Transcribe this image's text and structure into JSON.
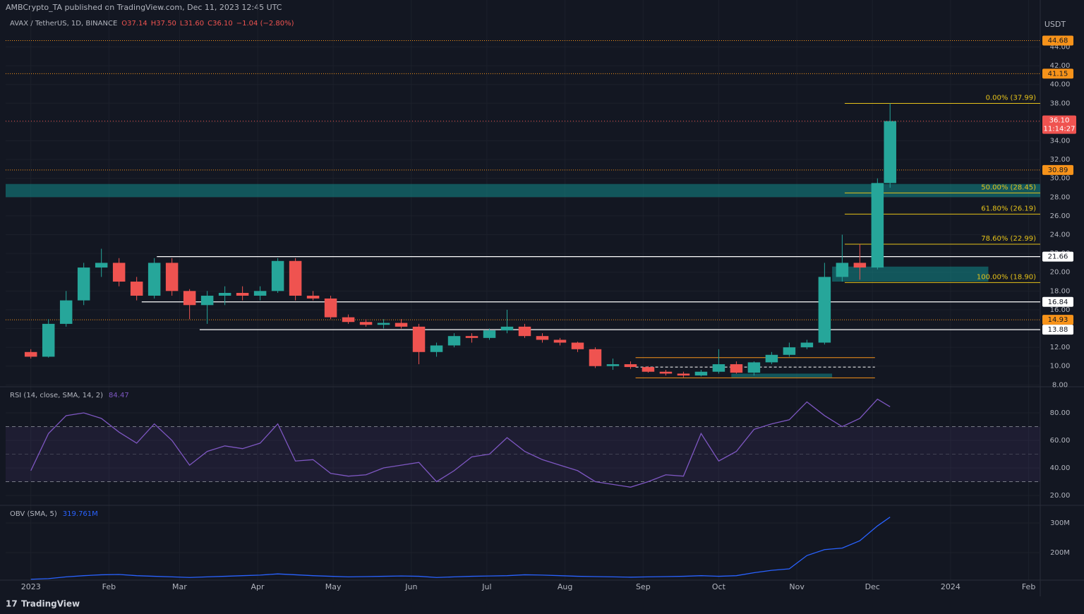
{
  "header": {
    "publisher": "AMBCrypto_TA published on TradingView.com, Dec 11, 2023 12:45 UTC",
    "symbol": "AVAX / TetherUS, 1D, BINANCE",
    "ohlc": [
      "O37.14",
      "H37.50",
      "L31.60",
      "C36.10",
      "−1.04 (−2.80%)"
    ],
    "currency": "USDT",
    "countdown": "11:14:27",
    "brand": "TradingView"
  },
  "chart_data": [
    {
      "type": "candlestick",
      "x": [
        0,
        7,
        14,
        21,
        28,
        35,
        42,
        49,
        56,
        63,
        70,
        77,
        84,
        91,
        98,
        105,
        112,
        119,
        126,
        133,
        140,
        147,
        154,
        161,
        168,
        175,
        182,
        189,
        196,
        203,
        210,
        217,
        224,
        231,
        238,
        245,
        252,
        259,
        266,
        273,
        280,
        287,
        294,
        301,
        308,
        315,
        322,
        329,
        336,
        341
      ],
      "open": [
        11.5,
        11,
        14.5,
        17,
        20.5,
        21,
        19,
        17.5,
        21,
        18,
        16.5,
        17.5,
        17.8,
        17.5,
        18,
        21.2,
        17.5,
        17.2,
        15.2,
        14.7,
        14.4,
        14.6,
        14.2,
        11.5,
        12.2,
        13.2,
        13,
        13.8,
        14.2,
        13.2,
        12.8,
        12.5,
        11.8,
        10,
        10.2,
        9.9,
        9.4,
        9.2,
        9,
        9.4,
        10.2,
        9.3,
        10.4,
        11.2,
        12,
        12.5,
        19.5,
        21,
        20.5,
        29.5
      ],
      "high": [
        11.8,
        15,
        18,
        21,
        22.5,
        21.5,
        19.5,
        21.5,
        21.5,
        18.2,
        18,
        18.5,
        18.5,
        18.5,
        21.5,
        21.5,
        18,
        17.5,
        15.5,
        15,
        15,
        15,
        14.5,
        12.5,
        13.5,
        13.5,
        14,
        16,
        14.5,
        13.5,
        13,
        12.6,
        12,
        10.8,
        10.5,
        10,
        9.6,
        9.4,
        9.6,
        11.8,
        10.5,
        10.5,
        11.5,
        12.5,
        12.8,
        21,
        24,
        23,
        30,
        37.99
      ],
      "low": [
        10.8,
        10.9,
        14.2,
        16.5,
        19.5,
        18.5,
        17,
        17.2,
        17.5,
        15,
        14.5,
        16.5,
        17,
        17,
        17.8,
        17,
        17,
        15,
        14.5,
        14.2,
        14,
        14,
        10.2,
        11,
        12,
        12.5,
        12.8,
        13.5,
        13,
        12.5,
        12.2,
        11.5,
        9.8,
        9.6,
        9.7,
        9.3,
        9,
        8.8,
        8.9,
        9.2,
        9.2,
        9,
        10.2,
        11,
        11.8,
        12.3,
        19,
        19.2,
        20.3,
        29
      ],
      "close": [
        11,
        14.5,
        17,
        20.5,
        21,
        19,
        17.5,
        21,
        18,
        16.5,
        17.5,
        17.8,
        17.5,
        18,
        21.2,
        17.5,
        17.2,
        15.2,
        14.7,
        14.4,
        14.6,
        14.2,
        11.5,
        12.2,
        13.2,
        13,
        13.8,
        14.2,
        13.2,
        12.8,
        12.5,
        11.8,
        10,
        10.2,
        9.9,
        9.4,
        9.2,
        9,
        9.4,
        10.2,
        9.3,
        10.4,
        11.2,
        12,
        12.5,
        19.5,
        21,
        20.5,
        29.5,
        36.1
      ],
      "up_color": "#26a69a",
      "down_color": "#ef5350",
      "xlim": [
        -10,
        400.6
      ],
      "xticks": [
        {
          "value": 0,
          "label": "2023"
        },
        {
          "value": 31,
          "label": "Feb"
        },
        {
          "value": 59,
          "label": "Mar"
        },
        {
          "value": 90,
          "label": "Apr"
        },
        {
          "value": 120,
          "label": "May"
        },
        {
          "value": 151,
          "label": "Jun"
        },
        {
          "value": 181,
          "label": "Jul"
        },
        {
          "value": 212,
          "label": "Aug"
        },
        {
          "value": 243,
          "label": "Sep"
        },
        {
          "value": 273,
          "label": "Oct"
        },
        {
          "value": 304,
          "label": "Nov"
        },
        {
          "value": 334,
          "label": "Dec"
        },
        {
          "value": 365,
          "label": "2024"
        },
        {
          "value": 396,
          "label": "Feb"
        }
      ],
      "ylim": [
        7.8,
        49
      ],
      "yticks": [
        {
          "value": 8,
          "label": "8.00"
        },
        {
          "value": 10,
          "label": "10.00"
        },
        {
          "value": 12,
          "label": "12.00"
        },
        {
          "value": 14,
          "label": "14.00"
        },
        {
          "value": 16,
          "label": "16.00"
        },
        {
          "value": 18,
          "label": "18.00"
        },
        {
          "value": 20,
          "label": "20.00"
        },
        {
          "value": 22,
          "label": "22.00"
        },
        {
          "value": 24,
          "label": "24.00"
        },
        {
          "value": 26,
          "label": "26.00"
        },
        {
          "value": 28,
          "label": "28.00"
        },
        {
          "value": 30,
          "label": "30.00"
        },
        {
          "value": 32,
          "label": "32.00"
        },
        {
          "value": 34,
          "label": "34.00"
        },
        {
          "value": 36,
          "label": "36.00"
        },
        {
          "value": 38,
          "label": "38.00"
        },
        {
          "value": 40,
          "label": "40.00"
        },
        {
          "value": 42,
          "label": "42.00"
        },
        {
          "value": 44,
          "label": "44.00"
        }
      ],
      "last_price": {
        "value": 36.1,
        "label": "36.10"
      },
      "levels": [
        {
          "value": 44.68,
          "color": "#f7931a",
          "x0": -10,
          "dash": true
        },
        {
          "value": 41.15,
          "color": "#f7931a",
          "x0": -10,
          "dash": true
        },
        {
          "value": 30.89,
          "color": "#f7931a",
          "x0": -10,
          "dash": true
        },
        {
          "value": 21.66,
          "color": "#ffffff",
          "x0": 50
        },
        {
          "value": 16.84,
          "color": "#ffffff",
          "x0": 44
        },
        {
          "value": 14.93,
          "color": "#f7931a",
          "x0": -10,
          "dash": true
        },
        {
          "value": 13.88,
          "color": "#ffffff",
          "x0": 67
        }
      ],
      "fib": [
        {
          "value": 37.99,
          "label": "0.00% (37.99)"
        },
        {
          "value": 28.45,
          "label": "50.00% (28.45)"
        },
        {
          "value": 26.19,
          "label": "61.80% (26.19)"
        },
        {
          "value": 22.99,
          "label": "78.60% (22.99)"
        },
        {
          "value": 18.9,
          "label": "100.00% (18.90)"
        }
      ],
      "fib_x0": 323,
      "fib_color": "#e5c21a",
      "zones": [
        {
          "y": [
            28,
            29.4
          ],
          "x0": -10,
          "x1": 400.6
        },
        {
          "y": [
            19,
            20.6
          ],
          "x0": 318,
          "x1": 380
        },
        {
          "y": [
            8.8,
            9.2
          ],
          "x0": 278,
          "x1": 318
        }
      ],
      "range": {
        "top": 10.9,
        "mid": 9.9,
        "bottom": 8.75,
        "x0": 240,
        "x1": 335
      }
    },
    {
      "type": "line",
      "title": "RSI (14, close, SMA, 14, 2)",
      "color": "#7e57c2",
      "values": [
        38,
        65,
        78,
        80,
        76,
        66,
        58,
        72,
        60,
        42,
        52,
        56,
        54,
        58,
        72,
        45,
        46,
        36,
        34,
        35,
        40,
        42,
        44,
        30,
        38,
        48,
        50,
        62,
        52,
        46,
        42,
        38,
        30,
        28,
        26,
        30,
        35,
        34,
        65,
        45,
        52,
        68,
        72,
        75,
        88,
        78,
        70,
        76,
        90,
        84.47
      ],
      "ylim": [
        12.8,
        99
      ],
      "yticks": [
        {
          "value": 20,
          "label": "20.00"
        },
        {
          "value": 40,
          "label": "40.00"
        },
        {
          "value": 60,
          "label": "60.00"
        },
        {
          "value": 80,
          "label": "80.00"
        }
      ],
      "band": [
        30,
        70
      ],
      "midline": 50
    },
    {
      "type": "line",
      "title": "OBV (SMA, 5)",
      "color": "#2962ff",
      "values": [
        110,
        112,
        118,
        122,
        125,
        126,
        122,
        120,
        118,
        116,
        118,
        120,
        122,
        124,
        128,
        125,
        122,
        120,
        118,
        119,
        120,
        121,
        120,
        116,
        118,
        120,
        121,
        122,
        125,
        124,
        122,
        120,
        119,
        118,
        117,
        118,
        119,
        120,
        122,
        120,
        122,
        132,
        140,
        145,
        190,
        210,
        215,
        240,
        290,
        319.761
      ],
      "legend_value": "319.761M",
      "ylim": [
        107,
        359.5
      ],
      "yticks": [
        {
          "value": 200,
          "label": "200M"
        },
        {
          "value": 300,
          "label": "300M"
        }
      ]
    }
  ]
}
